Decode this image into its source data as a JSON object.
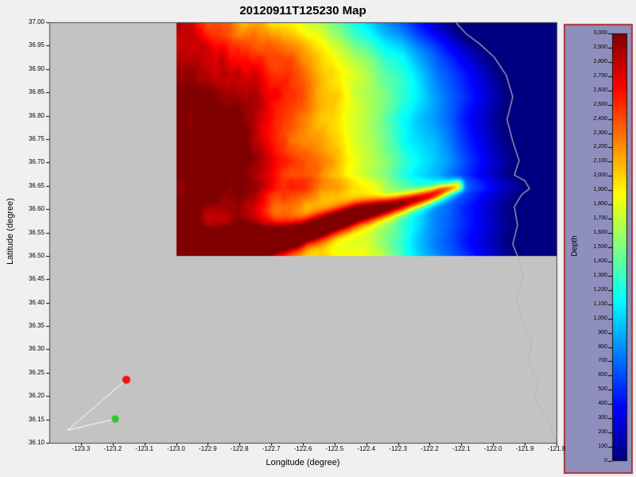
{
  "title": "20120911T125230 Map",
  "axes": {
    "xlabel": "Longitude (degree)",
    "ylabel": "Latitude (degree)"
  },
  "chart_data": {
    "type": "heatmap",
    "title": "20120911T125230 Map",
    "xlabel": "Longitude (degree)",
    "ylabel": "Latitude (degree)",
    "xlim": [
      -123.4,
      -121.8
    ],
    "ylim": [
      36.1,
      37.0
    ],
    "xticks": [
      "-123.3",
      "-123.2",
      "-123.1",
      "-123.0",
      "-122.9",
      "-122.8",
      "-122.7",
      "-122.6",
      "-122.5",
      "-122.4",
      "-122.3",
      "-122.2",
      "-122.1",
      "-122.0",
      "-121.9",
      "-121.8"
    ],
    "yticks": [
      "37.00",
      "36.95",
      "36.90",
      "36.85",
      "36.80",
      "36.75",
      "36.70",
      "36.65",
      "36.60",
      "36.55",
      "36.50",
      "36.45",
      "36.40",
      "36.35",
      "36.30",
      "36.25",
      "36.20",
      "36.15",
      "36.10"
    ],
    "grid": false,
    "plot_bg": "#c3c3c3",
    "figure_bg": "#f0f0f0",
    "heatmap": {
      "description": "Bathymetry depth raster over Monterey Bay region, jet colormap: deep red offshore (~2400-3000), dendritic channel texture, dark-red submarine canyon snaking east across lower half, dark blue shallow water and land mask along the coast (right side).",
      "lon_range": [
        -123.0,
        -121.8
      ],
      "lat_range": [
        36.5,
        37.0
      ],
      "value_range": [
        0,
        3000
      ],
      "colormap": "jet",
      "max_offshore_depth": 2700,
      "shelf_width_deg": 0.02,
      "slope_width_deg": 0.85,
      "canyon_path": [
        [
          -123.0,
          36.515
        ],
        [
          -122.8,
          36.52
        ],
        [
          -122.63,
          36.54
        ],
        [
          -122.43,
          36.59
        ],
        [
          -122.3,
          36.61
        ],
        [
          -122.19,
          36.63
        ],
        [
          -122.11,
          36.65
        ]
      ]
    },
    "coastline": [
      [
        -122.118,
        37.0
      ],
      [
        -122.086,
        36.976
      ],
      [
        -122.043,
        36.954
      ],
      [
        -121.996,
        36.925
      ],
      [
        -121.958,
        36.886
      ],
      [
        -121.938,
        36.84
      ],
      [
        -121.956,
        36.792
      ],
      [
        -121.938,
        36.745
      ],
      [
        -121.918,
        36.704
      ],
      [
        -121.933,
        36.673
      ],
      [
        -121.9,
        36.661
      ],
      [
        -121.885,
        36.644
      ],
      [
        -121.91,
        36.631
      ],
      [
        -121.933,
        36.605
      ],
      [
        -121.923,
        36.566
      ],
      [
        -121.938,
        36.525
      ],
      [
        -121.92,
        36.495
      ],
      [
        -121.905,
        36.457
      ],
      [
        -121.927,
        36.411
      ],
      [
        -121.91,
        36.364
      ],
      [
        -121.878,
        36.316
      ],
      [
        -121.89,
        36.274
      ],
      [
        -121.858,
        36.231
      ],
      [
        -121.868,
        36.194
      ],
      [
        -121.828,
        36.151
      ],
      [
        -121.808,
        36.114
      ],
      [
        -121.8,
        36.1
      ]
    ],
    "track": {
      "color": "#ffffff",
      "points": [
        [
          -123.157,
          36.235
        ],
        [
          -123.342,
          36.127
        ],
        [
          -123.192,
          36.151
        ]
      ],
      "markers": [
        {
          "lon": -123.157,
          "lat": 36.235,
          "color": "#ee1111",
          "radius": 5
        },
        {
          "lon": -123.192,
          "lat": 36.151,
          "color": "#22cc22",
          "radius": 4.5
        }
      ]
    },
    "colorbar": {
      "label": "Depth",
      "min": 0,
      "max": 3000,
      "step": 100,
      "tick_labels": [
        "3,000",
        "2,900",
        "2,800",
        "2,700",
        "2,600",
        "2,500",
        "2,400",
        "2,300",
        "2,200",
        "2,100",
        "2,000",
        "1,900",
        "1,800",
        "1,700",
        "1,600",
        "1,500",
        "1,400",
        "1,300",
        "1,200",
        "1,100",
        "1,000",
        "900",
        "800",
        "700",
        "600",
        "500",
        "400",
        "300",
        "200",
        "100",
        "0"
      ],
      "panel_color": "#8f8fbe",
      "border_color": "#a83232"
    }
  }
}
